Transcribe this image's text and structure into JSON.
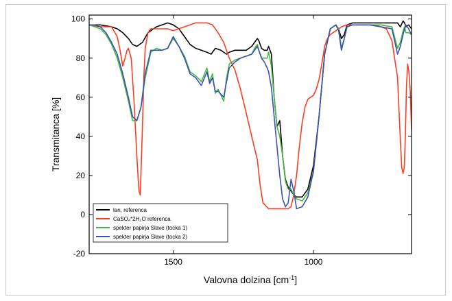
{
  "chart_data": {
    "type": "line",
    "title": "",
    "xlabel": "Valovna dolzina [cm",
    "xlabel_sup": "-1",
    "xlabel_close": "]",
    "ylabel": "Transmitanca [%]",
    "xlim": [
      1800,
      650
    ],
    "ylim": [
      -20,
      102
    ],
    "x_ticks": [
      1500,
      1000
    ],
    "y_ticks": [
      -20,
      0,
      20,
      40,
      60,
      80,
      100
    ],
    "grid": false,
    "legend_position": "bottom-left",
    "series": [
      {
        "name": "lan, referenca",
        "color": "#000000",
        "x": [
          1800,
          1760,
          1720,
          1700,
          1680,
          1660,
          1645,
          1630,
          1610,
          1590,
          1560,
          1540,
          1520,
          1500,
          1480,
          1460,
          1440,
          1420,
          1400,
          1380,
          1365,
          1350,
          1330,
          1310,
          1300,
          1280,
          1260,
          1240,
          1220,
          1210,
          1200,
          1195,
          1185,
          1175,
          1165,
          1160,
          1150,
          1140,
          1130,
          1120,
          1110,
          1100,
          1090,
          1080,
          1070,
          1060,
          1040,
          1020,
          1000,
          980,
          960,
          940,
          920,
          910,
          900,
          890,
          880,
          860,
          840,
          800,
          760,
          720,
          700,
          690,
          680,
          675,
          670,
          660,
          650
        ],
        "y": [
          97,
          97,
          96,
          95,
          93,
          90,
          87,
          86,
          88,
          93,
          96,
          97,
          98,
          97,
          95,
          91,
          87,
          85,
          84,
          83,
          82,
          85,
          84,
          82,
          83,
          84,
          84,
          84,
          86,
          88,
          90,
          89,
          85,
          84,
          84,
          86,
          82,
          60,
          45,
          48,
          30,
          18,
          14,
          12,
          10,
          9,
          9,
          13,
          25,
          50,
          82,
          95,
          97,
          95,
          90,
          92,
          97,
          98,
          98,
          98,
          98,
          98,
          98,
          96,
          99,
          98,
          96,
          97,
          95
        ]
      },
      {
        "name": "CaSO₄*2H₂O referenca",
        "color": "#ff3b1f",
        "x": [
          1800,
          1760,
          1720,
          1700,
          1690,
          1680,
          1672,
          1665,
          1660,
          1650,
          1640,
          1630,
          1625,
          1622,
          1618,
          1615,
          1610,
          1605,
          1600,
          1590,
          1580,
          1560,
          1540,
          1520,
          1500,
          1480,
          1460,
          1440,
          1420,
          1400,
          1380,
          1360,
          1340,
          1320,
          1300,
          1280,
          1260,
          1240,
          1220,
          1200,
          1190,
          1180,
          1160,
          1140,
          1120,
          1110,
          1100,
          1090,
          1080,
          1070,
          1060,
          1050,
          1040,
          1030,
          1020,
          1010,
          1000,
          990,
          980,
          970,
          960,
          950,
          940,
          920,
          900,
          880,
          860,
          840,
          820,
          800,
          780,
          760,
          740,
          720,
          700,
          690,
          685,
          680,
          676,
          672,
          668,
          664,
          660,
          655,
          650
        ],
        "y": [
          97,
          96,
          96,
          91,
          84,
          76,
          80,
          84,
          85,
          80,
          58,
          30,
          18,
          12,
          10,
          22,
          45,
          70,
          85,
          93,
          95,
          95,
          95,
          95,
          94,
          95,
          96,
          97,
          98,
          98,
          98,
          97,
          93,
          88,
          80,
          74,
          64,
          52,
          40,
          28,
          15,
          6,
          3,
          3,
          3,
          3,
          3,
          3,
          4,
          10,
          20,
          35,
          47,
          55,
          59,
          60,
          61,
          64,
          69,
          77,
          86,
          90,
          92,
          94,
          96,
          97,
          97,
          97,
          97,
          97,
          97,
          96,
          95,
          89,
          70,
          38,
          24,
          21,
          24,
          40,
          65,
          77,
          74,
          64,
          43
        ]
      },
      {
        "name": "spekter papirja Slave (tocka 1)",
        "color": "#46b83c",
        "x": [
          1800,
          1780,
          1760,
          1740,
          1720,
          1700,
          1680,
          1660,
          1645,
          1630,
          1615,
          1600,
          1580,
          1560,
          1540,
          1520,
          1500,
          1480,
          1460,
          1440,
          1420,
          1400,
          1380,
          1370,
          1360,
          1350,
          1340,
          1320,
          1310,
          1300,
          1280,
          1260,
          1240,
          1220,
          1210,
          1200,
          1195,
          1185,
          1175,
          1165,
          1160,
          1150,
          1140,
          1130,
          1120,
          1110,
          1100,
          1090,
          1080,
          1070,
          1060,
          1040,
          1020,
          1000,
          980,
          960,
          940,
          920,
          910,
          900,
          890,
          880,
          860,
          840,
          800,
          760,
          720,
          700,
          690,
          680,
          675,
          670,
          660,
          650
        ],
        "y": [
          97,
          96,
          95,
          92,
          87,
          80,
          70,
          58,
          48,
          48,
          55,
          70,
          83,
          85,
          84,
          85,
          90,
          86,
          81,
          73,
          71,
          68,
          75,
          68,
          72,
          62,
          64,
          58,
          70,
          77,
          79,
          80,
          81,
          82,
          85,
          87,
          84,
          80,
          80,
          80,
          83,
          76,
          60,
          45,
          40,
          30,
          17,
          13,
          13,
          10,
          8,
          7,
          11,
          22,
          50,
          82,
          95,
          97,
          95,
          85,
          90,
          96,
          97,
          97,
          97,
          97,
          96,
          85,
          88,
          94,
          96,
          93,
          93,
          92
        ]
      },
      {
        "name": "spekter papirja Slave (tocka 2)",
        "color": "#3a50b4",
        "x": [
          1800,
          1780,
          1760,
          1740,
          1720,
          1700,
          1680,
          1660,
          1645,
          1630,
          1615,
          1600,
          1580,
          1560,
          1540,
          1520,
          1500,
          1480,
          1460,
          1440,
          1420,
          1400,
          1380,
          1370,
          1360,
          1350,
          1340,
          1320,
          1310,
          1300,
          1280,
          1260,
          1240,
          1220,
          1210,
          1200,
          1195,
          1185,
          1175,
          1165,
          1160,
          1150,
          1140,
          1130,
          1120,
          1110,
          1100,
          1090,
          1080,
          1070,
          1060,
          1040,
          1020,
          1000,
          980,
          960,
          940,
          920,
          910,
          900,
          890,
          880,
          860,
          840,
          800,
          760,
          720,
          700,
          690,
          680,
          675,
          670,
          660,
          650
        ],
        "y": [
          97,
          97,
          96,
          93,
          88,
          82,
          72,
          60,
          50,
          48,
          55,
          72,
          84,
          84,
          84,
          85,
          91,
          86,
          80,
          72,
          70,
          66,
          73,
          67,
          70,
          63,
          63,
          60,
          68,
          75,
          78,
          80,
          81,
          82,
          84,
          86,
          84,
          80,
          78,
          75,
          73,
          65,
          50,
          35,
          20,
          8,
          4,
          6,
          18,
          12,
          3,
          4,
          9,
          22,
          50,
          82,
          95,
          97,
          94,
          84,
          90,
          96,
          97,
          97,
          97,
          96,
          95,
          82,
          86,
          92,
          95,
          97,
          95,
          92
        ]
      }
    ]
  }
}
